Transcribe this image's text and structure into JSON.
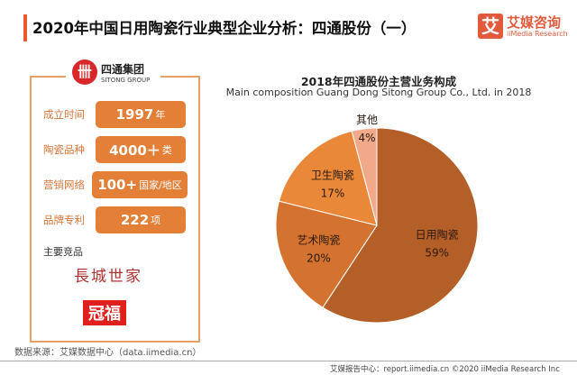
{
  "header": {
    "title": "2020年中国日用陶瓷行业典型企业分析：四通股份（一）",
    "logo_mark": "艾",
    "logo_cn": "艾媒咨询",
    "logo_en": "iiMedia Research"
  },
  "company": {
    "mark": "卌",
    "name_cn": "四通集团",
    "name_en": "SITONG GROUP",
    "facts": [
      {
        "label": "成立时间",
        "value": "1997",
        "unit": "年"
      },
      {
        "label": "陶瓷品种",
        "value": "4000＋",
        "unit": "类"
      },
      {
        "label": "营销网络",
        "value": "100+",
        "unit": "国家/地区"
      },
      {
        "label": "品牌专利",
        "value": "222",
        "unit": "项"
      }
    ],
    "products_label": "主要竞品",
    "products": [
      "長城世家",
      "冠福"
    ]
  },
  "source": "数据来源：艾媒数据中心（data.iimedia.cn）",
  "footer": "艾媒报告中心：report.iimedia.cn ©2020 iiMedia Research Inc",
  "chart_data": {
    "type": "pie",
    "title": "2018年四通股份主营业务构成",
    "subtitle": "Main composition Guang Dong Sitong Group Co., Ltd. in 2018",
    "categories": [
      "日用陶瓷",
      "艺术陶瓷",
      "卫生陶瓷",
      "其他"
    ],
    "values": [
      59,
      20,
      17,
      4
    ],
    "labels": [
      "59%",
      "20%",
      "17%",
      "4%"
    ],
    "colors": [
      "#b55f28",
      "#d4732f",
      "#e98838",
      "#f1a98a"
    ]
  }
}
